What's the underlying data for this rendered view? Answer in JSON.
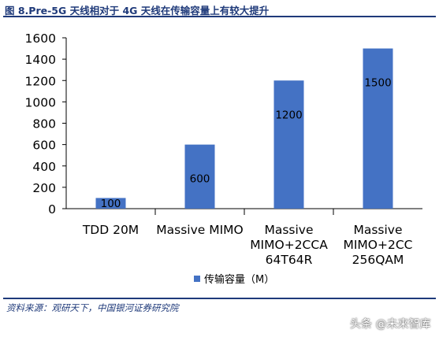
{
  "figure_title": "图 8.Pre-5G 天线相对于 4G 天线在传输容量上有较大提升",
  "source_note": "资料来源：观研天下，中国银河证券研究院",
  "watermark": "头条 @未来智库",
  "colors": {
    "bar": "#4472c4",
    "title": "#1f3a7a",
    "axis": "#000000",
    "grid": "#000000"
  },
  "chart_data": {
    "type": "bar",
    "title": "",
    "xlabel": "",
    "ylabel": "",
    "ylim": [
      0,
      1600
    ],
    "yticks": [
      0,
      200,
      400,
      600,
      800,
      1000,
      1200,
      1400,
      1600
    ],
    "grid": false,
    "legend_position": "bottom",
    "categories": [
      [
        "TDD 20M"
      ],
      [
        "Massive MIMO"
      ],
      [
        "Massive",
        "MIMO+2CCA",
        "64T64R"
      ],
      [
        "Massive",
        "MIMO+2CC",
        "256QAM"
      ]
    ],
    "series": [
      {
        "name": "传输容量（M）",
        "values": [
          100,
          600,
          1200,
          1500
        ],
        "data_labels": [
          "100",
          "600",
          "1200",
          "1500"
        ]
      }
    ]
  }
}
